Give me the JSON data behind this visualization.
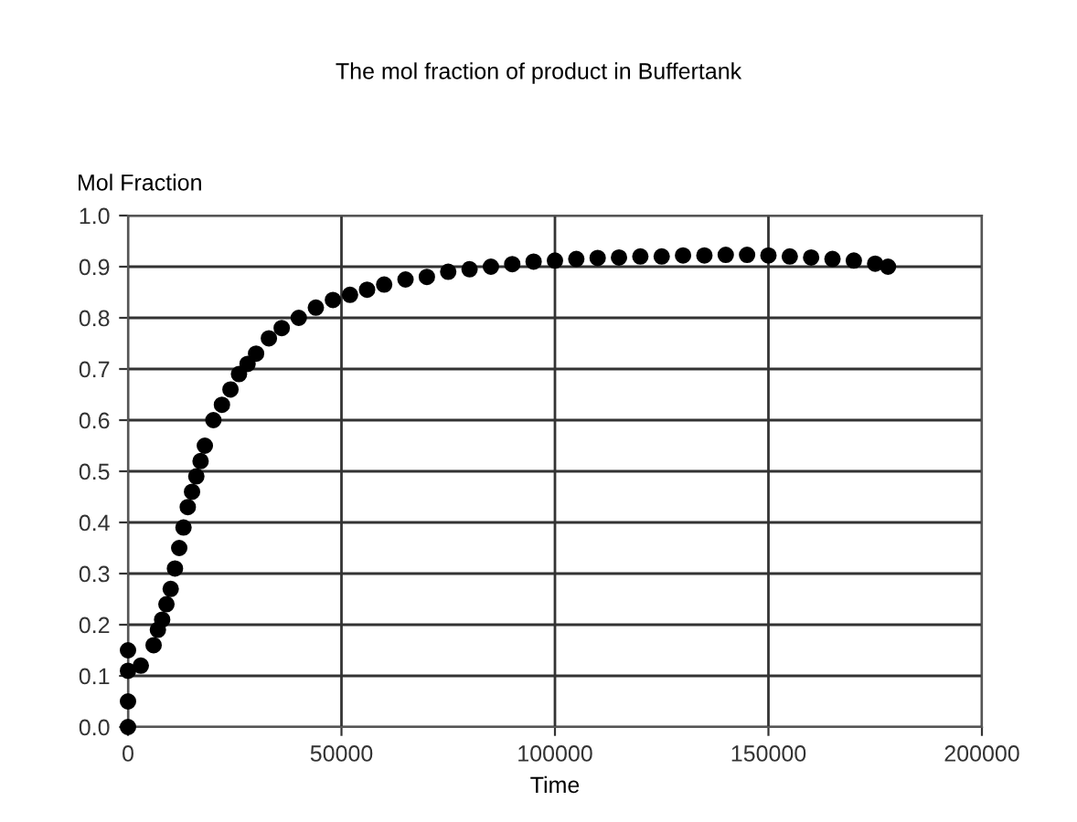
{
  "chart_data": {
    "type": "scatter",
    "title": "The mol fraction of product in Buffertank",
    "xlabel": "Time",
    "ylabel": "Mol Fraction",
    "x": [
      0,
      0,
      0,
      0,
      3000,
      6000,
      7000,
      8000,
      9000,
      10000,
      11000,
      12000,
      13000,
      14000,
      15000,
      16000,
      17000,
      18000,
      20000,
      22000,
      24000,
      26000,
      28000,
      30000,
      33000,
      36000,
      40000,
      44000,
      48000,
      52000,
      56000,
      60000,
      65000,
      70000,
      75000,
      80000,
      85000,
      90000,
      95000,
      100000,
      105000,
      110000,
      115000,
      120000,
      125000,
      130000,
      135000,
      140000,
      145000,
      150000,
      155000,
      160000,
      165000,
      170000,
      175000,
      178000
    ],
    "values": [
      0.0,
      0.05,
      0.11,
      0.15,
      0.12,
      0.16,
      0.19,
      0.21,
      0.24,
      0.27,
      0.31,
      0.35,
      0.39,
      0.43,
      0.46,
      0.49,
      0.52,
      0.55,
      0.6,
      0.63,
      0.66,
      0.69,
      0.71,
      0.73,
      0.76,
      0.78,
      0.8,
      0.82,
      0.835,
      0.845,
      0.855,
      0.865,
      0.875,
      0.88,
      0.89,
      0.895,
      0.9,
      0.905,
      0.91,
      0.912,
      0.915,
      0.917,
      0.918,
      0.92,
      0.92,
      0.922,
      0.922,
      0.923,
      0.923,
      0.922,
      0.92,
      0.918,
      0.915,
      0.912,
      0.906,
      0.9
    ],
    "color": "#000000",
    "marker": "circle",
    "xlim": [
      0,
      200000
    ],
    "xticks": [
      0,
      50000,
      100000,
      150000,
      200000
    ],
    "ylim": [
      0,
      1.0
    ],
    "yticks": [
      {
        "value": 0,
        "label": "0.0"
      },
      0.1,
      0.2,
      0.3,
      0.4,
      0.5,
      0.6,
      0.7,
      0.8,
      0.9,
      {
        "value": 1.0,
        "label": "1.0"
      }
    ],
    "grid": true,
    "legend": false
  }
}
